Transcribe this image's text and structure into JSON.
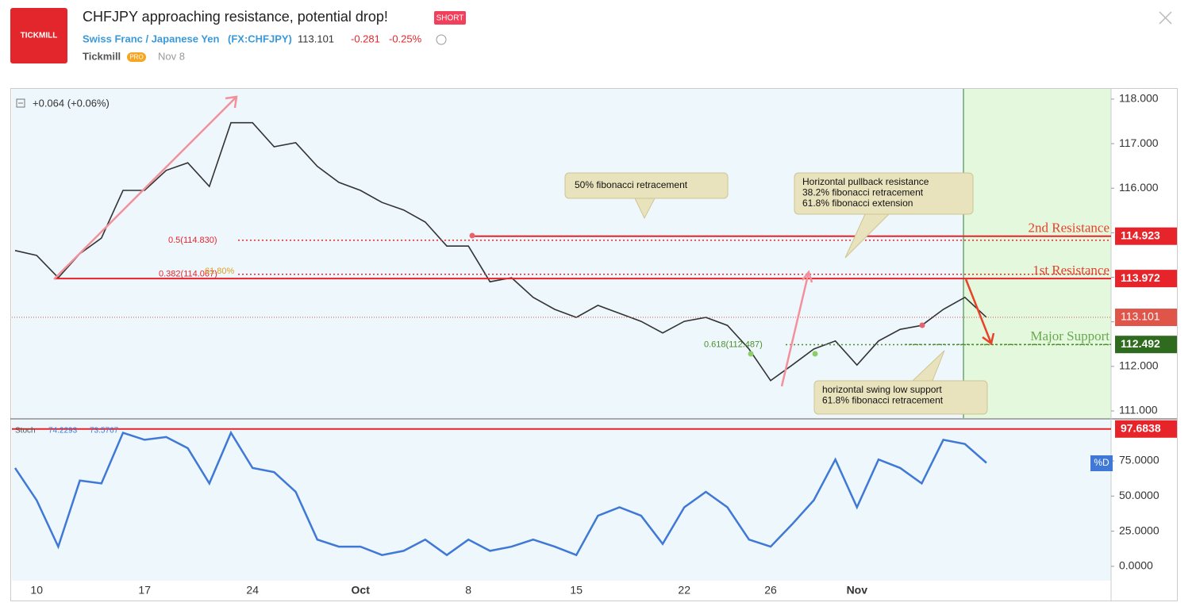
{
  "header": {
    "logo": "TICKMILL",
    "title": "CHFJPY approaching resistance, potential drop!",
    "badge": "SHORT",
    "symbol": "Swiss Franc / Japanese Yen",
    "ticker": "(FX:CHFJPY)",
    "price": "113.101",
    "change": "-0.281",
    "change_percent": "-0.25%",
    "author": "Tickmill",
    "author_badge": "PRO",
    "date": "Nov 8"
  },
  "chart_data": [
    {
      "type": "line",
      "legend": "+0.064 (+0.06%)",
      "color": "#333333",
      "categories": [
        null,
        "10",
        null,
        null,
        null,
        null,
        "17",
        null,
        null,
        null,
        null,
        "24",
        null,
        null,
        null,
        null,
        "Oct",
        null,
        null,
        null,
        null,
        "8",
        null,
        null,
        null,
        null,
        "15",
        null,
        null,
        null,
        null,
        "22",
        null,
        null,
        null,
        "26",
        null,
        null,
        null,
        "Nov",
        null,
        null,
        null,
        null,
        null,
        null
      ],
      "values": [
        114.6,
        114.49,
        113.99,
        114.53,
        114.88,
        115.95,
        115.95,
        116.4,
        116.57,
        116.04,
        117.47,
        117.47,
        116.93,
        117.02,
        116.49,
        116.13,
        115.95,
        115.68,
        115.51,
        115.24,
        114.7,
        114.7,
        113.9,
        113.99,
        113.55,
        113.28,
        113.1,
        113.37,
        113.19,
        113.01,
        112.75,
        113.01,
        113.1,
        112.92,
        112.39,
        111.68,
        112.03,
        112.39,
        112.57,
        112.03,
        112.57,
        112.83,
        112.92,
        113.28,
        113.55,
        113.1
      ],
      "ylim": [
        110.84,
        118.23
      ],
      "yticks": [
        {
          "value": 111,
          "label": "111.000"
        },
        {
          "value": 112,
          "label": "112.000"
        },
        {
          "value": 113,
          "label": "113.000"
        },
        {
          "value": 114,
          "label": "114.000"
        },
        {
          "value": 115,
          "label": "115.000"
        },
        {
          "value": 116,
          "label": "116.000"
        },
        {
          "value": 117,
          "label": "117.000"
        },
        {
          "value": 118,
          "label": "118.000"
        }
      ],
      "levels": [
        {
          "name": "2nd Resistance",
          "value": 114.923,
          "color": "#e8242b"
        },
        {
          "name": "1st Resistance",
          "value": 113.972,
          "color": "#e8242b"
        },
        {
          "name": "Major Support",
          "value": 112.492,
          "color": "#2e6b1e"
        }
      ],
      "last_price": 113.101,
      "fib_levels": [
        {
          "label": "0.5(114.830)",
          "value": 114.83,
          "color": "#e8242b"
        },
        {
          "label": "0.382(114.067)",
          "value": 114.067,
          "color": "#e8242b"
        },
        {
          "label": "0.618(112.487)",
          "value": 112.487,
          "color": "#4d8f2c"
        }
      ],
      "fib_note": "61.80%",
      "annotations": [
        {
          "lines": [
            "50% fibonacci retracement"
          ]
        },
        {
          "lines": [
            "Horizontal pullback resistance",
            "38.2% fibonacci retracement",
            "61.8% fibonacci extension"
          ]
        },
        {
          "lines": [
            "horizontal swing low support",
            "61.8% fibonacci retracement"
          ]
        }
      ]
    },
    {
      "type": "line",
      "legend": {
        "name": "Stoch",
        "k": "74.2293",
        "d": "73.5767"
      },
      "series": [
        {
          "name": "%D",
          "color": "#3f78d6",
          "values": [
            70,
            47,
            14,
            61,
            59,
            95,
            90,
            92,
            84,
            59,
            95,
            70,
            67,
            53,
            19,
            14,
            14,
            8,
            11,
            19,
            8,
            19,
            11,
            14,
            19,
            14,
            8,
            36,
            42,
            36,
            16,
            42,
            53,
            42,
            19,
            14,
            30,
            47,
            76,
            42,
            76,
            70,
            59,
            90,
            87,
            73.58
          ]
        }
      ],
      "ylim": [
        -10.2,
        104.9
      ],
      "yticks": [
        {
          "value": 0,
          "label": "0.0000"
        },
        {
          "value": 25,
          "label": "25.0000"
        },
        {
          "value": 50,
          "label": "50.0000"
        },
        {
          "value": 75,
          "label": "75.0000"
        }
      ],
      "levels": [
        {
          "value": 97.6838,
          "color": "#e8242b"
        }
      ]
    }
  ]
}
